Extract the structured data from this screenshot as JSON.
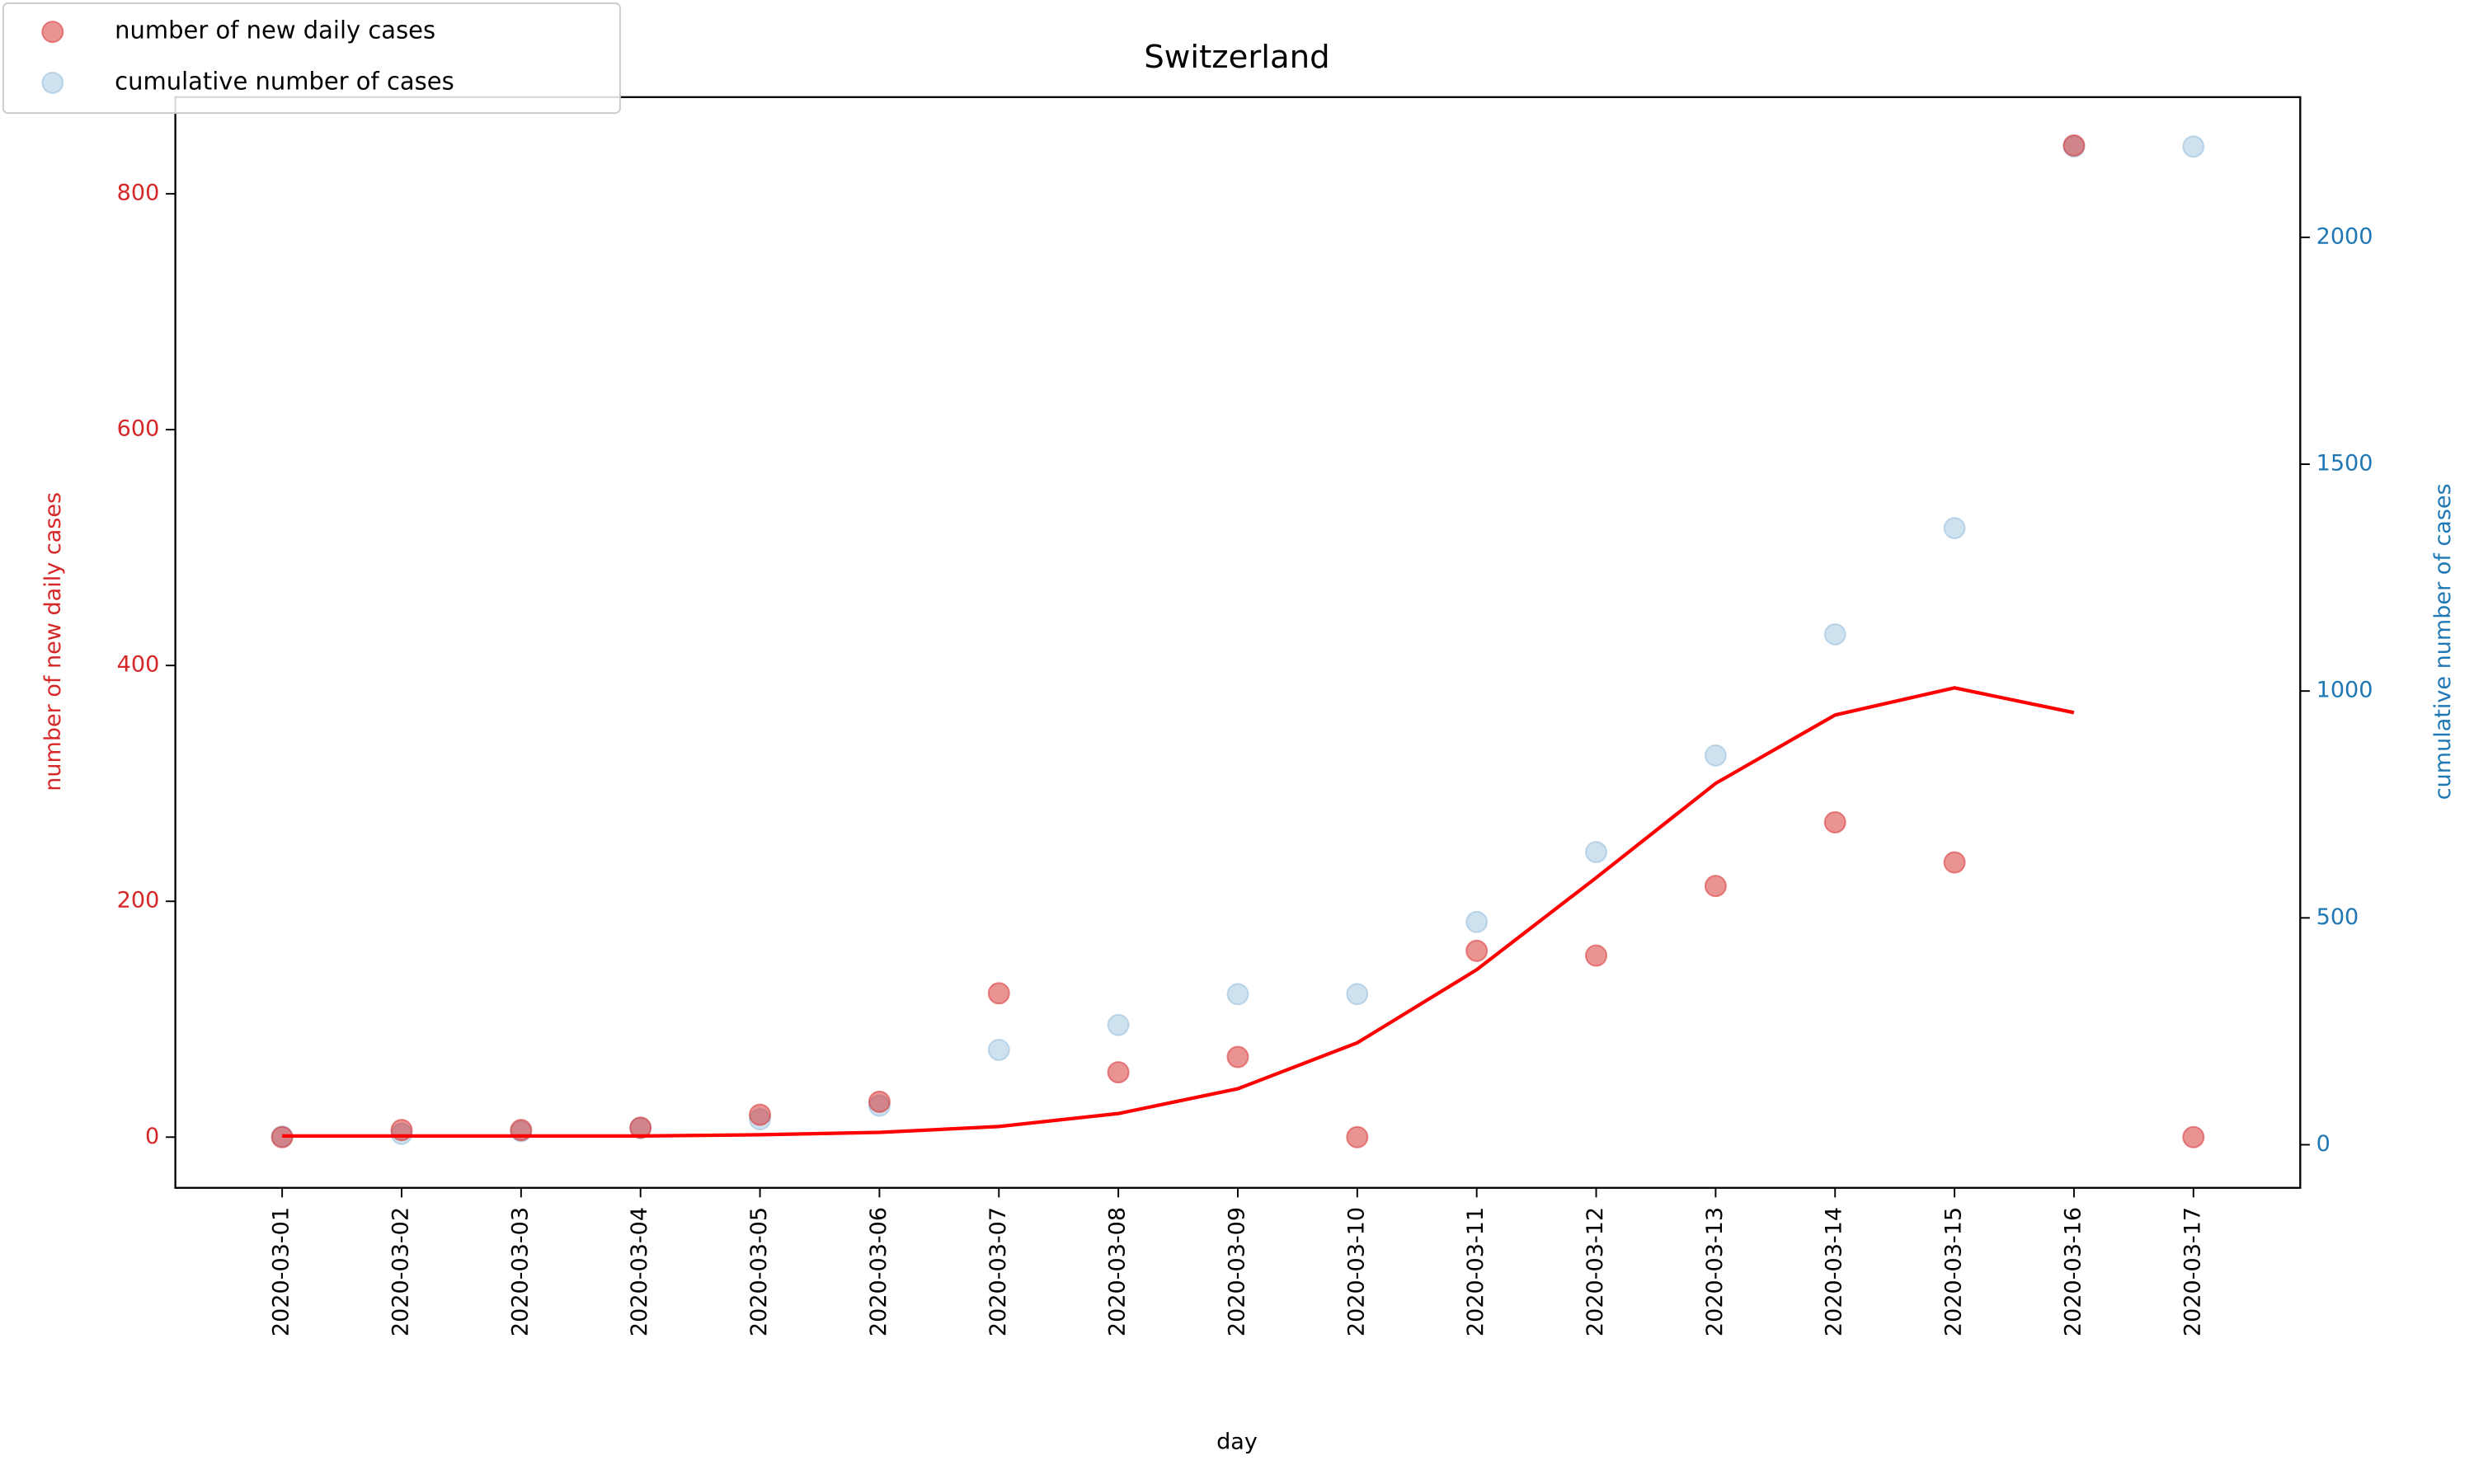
{
  "chart_data": {
    "type": "scatter",
    "title": "Switzerland",
    "xlabel": "day",
    "ylabel": "number of new daily cases",
    "y2label": "cumulative number of cases",
    "categories": [
      "2020-03-01",
      "2020-03-02",
      "2020-03-03",
      "2020-03-04",
      "2020-03-05",
      "2020-03-06",
      "2020-03-07",
      "2020-03-08",
      "2020-03-09",
      "2020-03-10",
      "2020-03-11",
      "2020-03-12",
      "2020-03-13",
      "2020-03-14",
      "2020-03-15",
      "2020-03-16",
      "2020-03-17"
    ],
    "series": [
      {
        "name": "number of new daily cases",
        "color": "#d62728",
        "axis": "y",
        "values": [
          0,
          6,
          6,
          8,
          19,
          30,
          122,
          55,
          68,
          0,
          158,
          154,
          213,
          267,
          233,
          841,
          0
        ]
      },
      {
        "name": "cumulative number of cases",
        "color": "#1f77b4",
        "axis": "y2",
        "values": [
          18,
          24,
          30,
          37,
          56,
          86,
          209,
          264,
          332,
          332,
          491,
          645,
          858,
          1125,
          1359,
          2200,
          2200
        ]
      },
      {
        "type": "line",
        "color": "#ff0000",
        "axis": "y",
        "values": [
          1,
          1,
          1,
          1,
          2,
          4,
          9,
          20,
          41,
          80,
          142,
          220,
          300,
          358,
          381,
          360,
          null
        ]
      }
    ],
    "ylim": [
      -43,
      882
    ],
    "yticks": [
      0,
      200,
      400,
      600,
      800
    ],
    "y2lim": [
      -95,
      2309
    ],
    "y2ticks": [
      0,
      500,
      1000,
      1500,
      2000
    ],
    "legend": "upper left"
  }
}
